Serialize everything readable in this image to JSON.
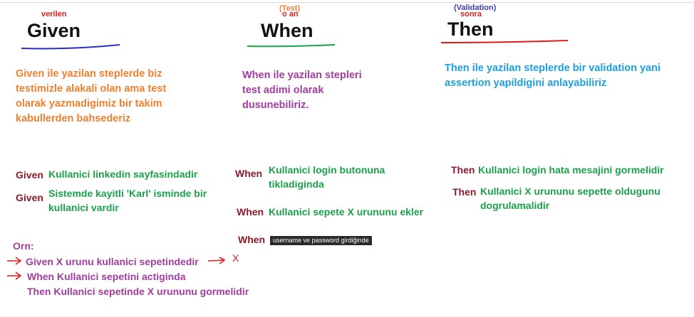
{
  "given": {
    "label_small": "verilen",
    "title": "Given",
    "description": "Given ile yazilan steplerde biz testimizle alakali olan ama test olarak yazmadigimiz bir takim kabullerden bahsederiz",
    "steps": [
      {
        "keyword": "Given",
        "text": "Kullanici linkedin sayfasindadir"
      },
      {
        "keyword": "Given",
        "text": "Sistemde kayitli 'Karl' isminde bir kullanici vardir"
      }
    ]
  },
  "when": {
    "label_small_1": "(Test)",
    "label_small_2": "o an",
    "title": "When",
    "description": "When ile yazilan stepleri test adimi olarak dusunebiliriz.",
    "steps": [
      {
        "keyword": "When",
        "text": "Kullanici login butonuna tikladiginda"
      },
      {
        "keyword": "When",
        "text": "Kullanici sepete X urununu ekler"
      },
      {
        "keyword": "When",
        "tag": "username ve password girdiğinde"
      }
    ]
  },
  "then": {
    "label_small_1": "(Validation)",
    "label_small_2": "sonra",
    "title": "Then",
    "description": "Then ile yazilan steplerde bir validation yani assertion yapildigini anlayabiliriz",
    "steps": [
      {
        "keyword": "Then",
        "text": "Kullanici login hata mesajini gormelidir"
      },
      {
        "keyword": "Then",
        "text": "Kullanici X urununu sepette oldugunu dogrulamalidir"
      }
    ]
  },
  "example": {
    "label": "Orn:",
    "lines": [
      "Given X urunu kullanici sepetindedir",
      "When Kullanici sepetini actiginda",
      "Then Kullanici sepetinde X urununu gormelidir"
    ],
    "mark": "X"
  },
  "colors": {
    "given_text": "#f07f2e",
    "when_text": "#a23c9e",
    "then_text": "#1ea0dc",
    "keyword": "#8b1a2b",
    "step": "#1aa14a",
    "annotation_red": "#e01a1a"
  }
}
